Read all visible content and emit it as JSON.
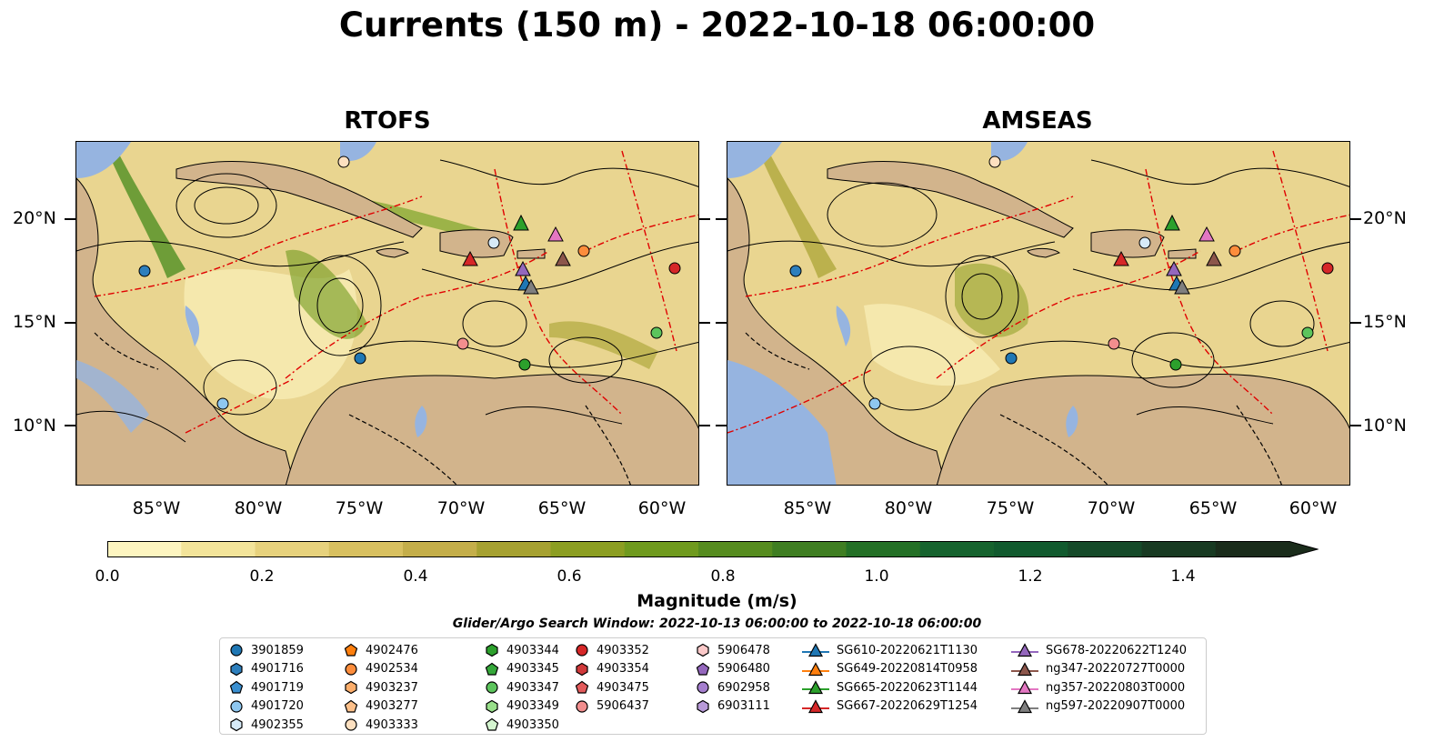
{
  "title": "Currents (150 m) - 2022-10-18 06:00:00",
  "panels": [
    {
      "title": "RTOFS"
    },
    {
      "title": "AMSEAS"
    }
  ],
  "lat_labels": [
    "20°N",
    "15°N",
    "10°N"
  ],
  "lon_labels": [
    "85°W",
    "80°W",
    "75°W",
    "70°W",
    "65°W",
    "60°W"
  ],
  "colorbar": {
    "label": "Magnitude (m/s)",
    "ticks": [
      "0.0",
      "0.2",
      "0.4",
      "0.6",
      "0.8",
      "1.0",
      "1.2",
      "1.4"
    ],
    "range": [
      0.0,
      1.5
    ],
    "extend": "max",
    "colors": [
      "#fdf5c0",
      "#f3e49a",
      "#e7d27d",
      "#d8c060",
      "#c4ae4a",
      "#a6a131",
      "#8c9e22",
      "#6f9a1e",
      "#568c1f",
      "#3f7e22",
      "#247026",
      "#16632e",
      "#115a2e",
      "#154a29",
      "#183a22",
      "#1a2c1b"
    ]
  },
  "search_window": "Glider/Argo Search Window: 2022-10-13 06:00:00 to 2022-10-18 06:00:00",
  "legend": {
    "columns": [
      [
        {
          "label": "3901859",
          "marker": "circle",
          "color": "#1f77b4"
        },
        {
          "label": "4901716",
          "marker": "hexagon",
          "color": "#2d7fbd"
        },
        {
          "label": "4901719",
          "marker": "pentagon",
          "color": "#3a8fd0"
        },
        {
          "label": "4901720",
          "marker": "circle",
          "color": "#8ec7f0"
        },
        {
          "label": "4902355",
          "marker": "hexagon",
          "color": "#d6eaf8"
        }
      ],
      [
        {
          "label": "4902476",
          "marker": "pentagon",
          "color": "#ff7f0e"
        },
        {
          "label": "4902534",
          "marker": "circle",
          "color": "#fd8d3c"
        },
        {
          "label": "4903237",
          "marker": "hexagon",
          "color": "#fdae6b"
        },
        {
          "label": "4903277",
          "marker": "pentagon",
          "color": "#fdc08a"
        },
        {
          "label": "4903333",
          "marker": "circle",
          "color": "#fde0c0"
        }
      ],
      [
        {
          "label": "4903344",
          "marker": "hexagon",
          "color": "#2ca02c"
        },
        {
          "label": "4903345",
          "marker": "pentagon",
          "color": "#35a83a"
        },
        {
          "label": "4903347",
          "marker": "circle",
          "color": "#5cc45c"
        },
        {
          "label": "4903349",
          "marker": "hexagon",
          "color": "#98df8a"
        },
        {
          "label": "4903350",
          "marker": "pentagon",
          "color": "#d5f5d0"
        }
      ],
      [
        {
          "label": "4903352",
          "marker": "circle",
          "color": "#d62728"
        },
        {
          "label": "4903354",
          "marker": "hexagon",
          "color": "#d0393a"
        },
        {
          "label": "4903475",
          "marker": "pentagon",
          "color": "#e35b5c"
        },
        {
          "label": "5906437",
          "marker": "circle",
          "color": "#f28e8e"
        }
      ],
      [
        {
          "label": "5906478",
          "marker": "hexagon",
          "color": "#fbc9c9"
        },
        {
          "label": "5906480",
          "marker": "pentagon",
          "color": "#9467bd"
        },
        {
          "label": "6902958",
          "marker": "circle",
          "color": "#a57fcf"
        },
        {
          "label": "6903111",
          "marker": "hexagon",
          "color": "#b89ad8"
        }
      ],
      [
        {
          "label": "SG610-20220621T1130",
          "marker": "triangle",
          "color": "#1f77b4"
        },
        {
          "label": "SG649-20220814T0958",
          "marker": "triangle",
          "color": "#ff7f0e"
        },
        {
          "label": "SG665-20220623T1144",
          "marker": "triangle",
          "color": "#2ca02c"
        },
        {
          "label": "SG667-20220629T1254",
          "marker": "triangle",
          "color": "#d62728"
        }
      ],
      [
        {
          "label": "SG678-20220622T1240",
          "marker": "triangle",
          "color": "#9467bd"
        },
        {
          "label": "ng347-20220727T0000",
          "marker": "triangle",
          "color": "#8c564b"
        },
        {
          "label": "ng357-20220803T0000",
          "marker": "triangle",
          "color": "#e377c2"
        },
        {
          "label": "ng597-20220907T0000",
          "marker": "triangle",
          "color": "#7f7f7f"
        }
      ]
    ]
  },
  "map_colors": {
    "land": "#d2b48c",
    "water_blue": "#96b4e0",
    "low_current": "#e9d590",
    "high_current": "#5f9e23"
  }
}
